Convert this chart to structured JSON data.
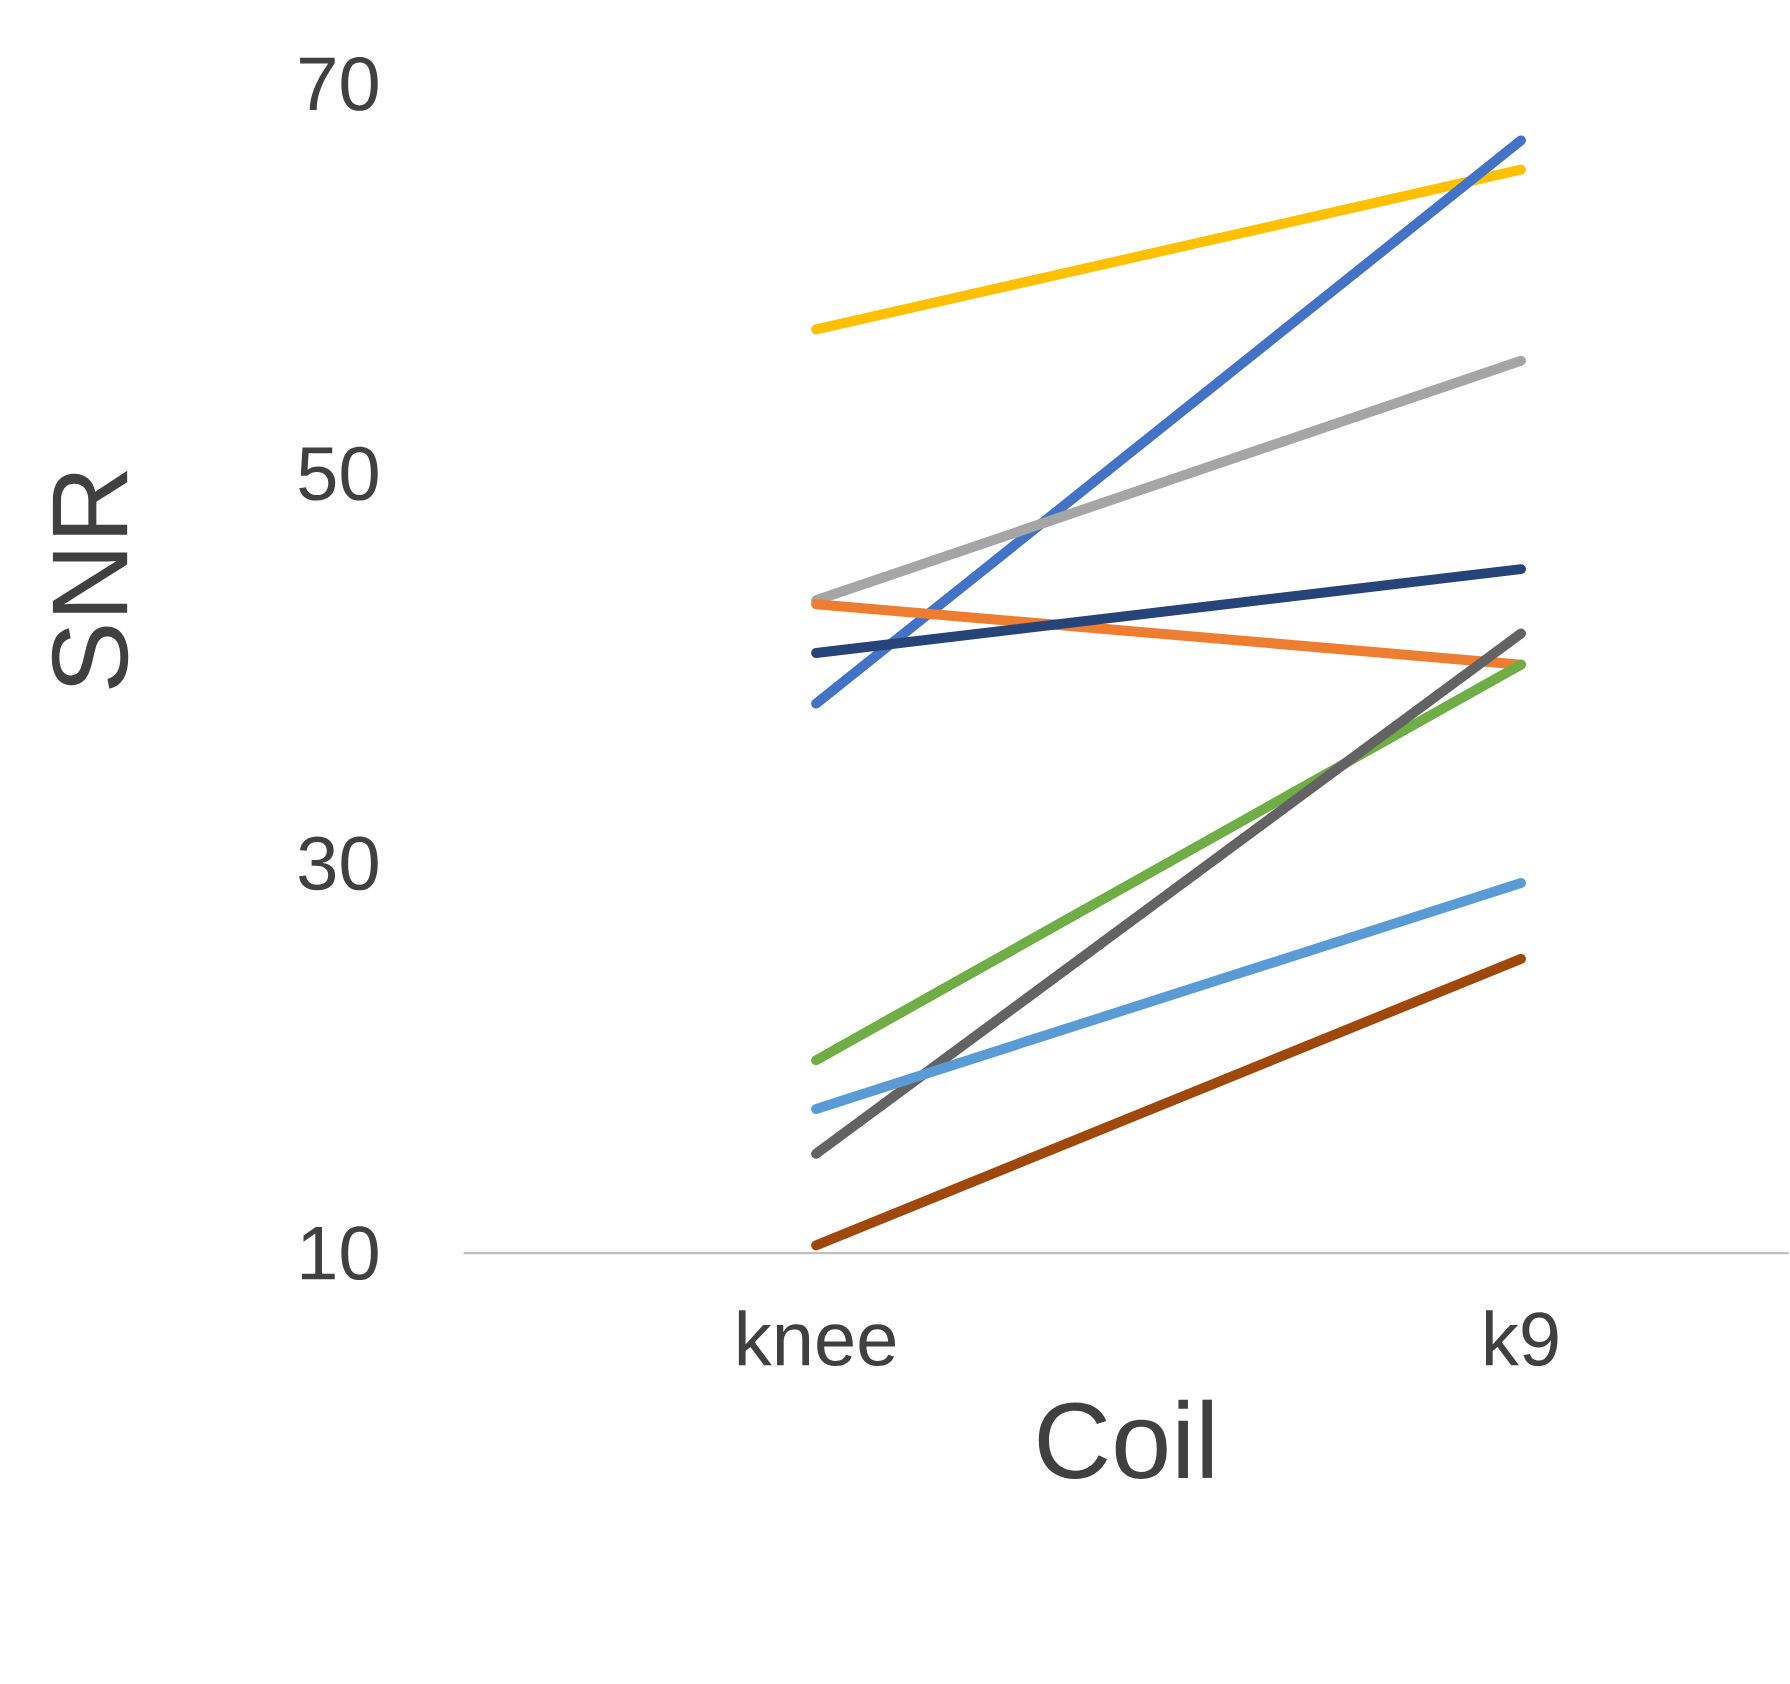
{
  "chart_data": {
    "type": "line",
    "xlabel": "Coil",
    "ylabel": "SNR",
    "categories": [
      "knee",
      "k9"
    ],
    "ylim": [
      10,
      70
    ],
    "yticks": [
      10,
      30,
      50,
      70
    ],
    "marker": "none",
    "grid": false,
    "series": [
      {
        "color": "#ffc000",
        "values": [
          57.4,
          65.6
        ]
      },
      {
        "color": "#4472c4",
        "values": [
          38.2,
          67.1
        ]
      },
      {
        "color": "#a5a5a5",
        "values": [
          43.5,
          55.8
        ]
      },
      {
        "color": "#ed7d31",
        "values": [
          43.3,
          40.2
        ]
      },
      {
        "color": "#264478",
        "values": [
          40.8,
          45.1
        ]
      },
      {
        "color": "#70ad47",
        "values": [
          19.9,
          40.2
        ]
      },
      {
        "color": "#636363",
        "values": [
          15.1,
          41.8
        ]
      },
      {
        "color": "#5b9bd5",
        "values": [
          17.4,
          29.0
        ]
      },
      {
        "color": "#9e480e",
        "values": [
          10.4,
          25.1
        ]
      }
    ]
  }
}
